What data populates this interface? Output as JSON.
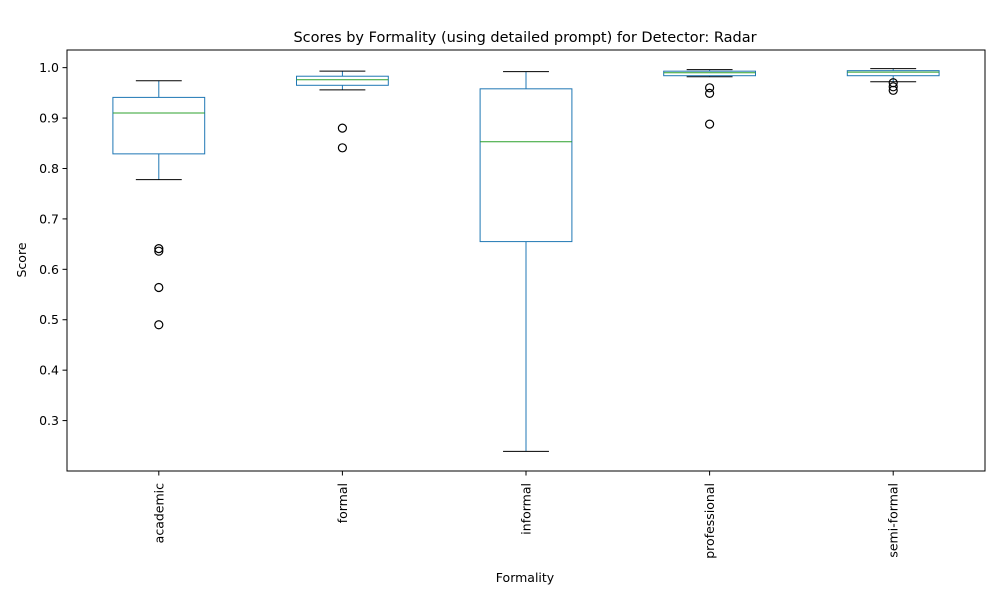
{
  "chart_data": {
    "type": "boxplot",
    "title": "Scores by Formality (using detailed prompt) for Detector: Radar",
    "xlabel": "Formality",
    "ylabel": "Score",
    "ylim": [
      0.2,
      1.035
    ],
    "yticks": [
      0.3,
      0.4,
      0.5,
      0.6,
      0.7,
      0.8,
      0.9,
      1.0
    ],
    "ytick_labels": [
      "0.3",
      "0.4",
      "0.5",
      "0.6",
      "0.7",
      "0.8",
      "0.9",
      "1.0"
    ],
    "categories": [
      "academic",
      "formal",
      "informal",
      "professional",
      "semi-formal"
    ],
    "grid": false,
    "colors": {
      "box": "#1f77b4",
      "median": "#2ca02c",
      "whisker_cap": "#000000",
      "flier": "#000000"
    },
    "boxes": [
      {
        "category": "academic",
        "whislo": 0.778,
        "q1": 0.829,
        "med": 0.91,
        "q3": 0.941,
        "whishi": 0.974,
        "fliers": [
          0.641,
          0.636,
          0.564,
          0.49
        ]
      },
      {
        "category": "formal",
        "whislo": 0.956,
        "q1": 0.965,
        "med": 0.976,
        "q3": 0.983,
        "whishi": 0.993,
        "fliers": [
          0.88,
          0.841
        ]
      },
      {
        "category": "informal",
        "whislo": 0.239,
        "q1": 0.655,
        "med": 0.853,
        "q3": 0.958,
        "whishi": 0.992,
        "fliers": []
      },
      {
        "category": "professional",
        "whislo": 0.982,
        "q1": 0.984,
        "med": 0.99,
        "q3": 0.993,
        "whishi": 0.996,
        "fliers": [
          0.96,
          0.949,
          0.888
        ]
      },
      {
        "category": "semi-formal",
        "whislo": 0.972,
        "q1": 0.984,
        "med": 0.991,
        "q3": 0.994,
        "whishi": 0.998,
        "fliers": [
          0.97,
          0.962,
          0.955
        ]
      }
    ]
  }
}
